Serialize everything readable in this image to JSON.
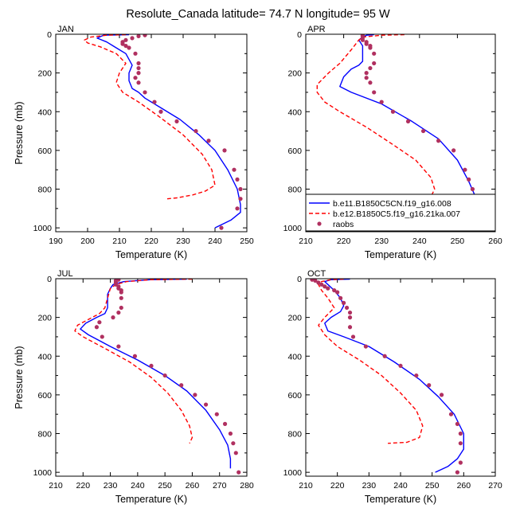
{
  "figure": {
    "title": "Resolute_Canada  latitude= 74.7 N longitude= 95 W"
  },
  "legend": {
    "entries": [
      {
        "label": "b.e11.B1850C5CN.f19_g16.008",
        "color": "#0000ff",
        "style": "solid"
      },
      {
        "label": "b.e12.B1850C5.f19_g16.21ka.007",
        "color": "#ff0000",
        "style": "dashed"
      },
      {
        "label": "raobs",
        "color": "#b03060",
        "style": "dots"
      }
    ]
  },
  "chart_data": [
    {
      "type": "line",
      "panel": "JAN",
      "title": "JAN",
      "xlabel": "Temperature (K)",
      "ylabel": "Pressure (mb)",
      "xlim": [
        190,
        250
      ],
      "ylim": [
        1020,
        0
      ],
      "xticks": [
        190,
        200,
        210,
        220,
        230,
        240,
        250
      ],
      "yticks": [
        0,
        200,
        400,
        600,
        800,
        1000
      ],
      "series": [
        {
          "name": "b.e11.B1850C5CN.f19_g16.008",
          "color": "#0000ff",
          "style": "solid",
          "x": [
            213,
            205,
            203,
            206,
            208,
            210,
            212,
            213,
            214,
            213,
            213,
            214,
            216,
            218,
            223,
            229,
            235,
            240,
            244,
            247,
            248,
            248,
            245,
            240
          ],
          "y": [
            2,
            5,
            20,
            40,
            60,
            80,
            100,
            130,
            160,
            200,
            240,
            280,
            300,
            330,
            380,
            440,
            520,
            600,
            700,
            800,
            880,
            920,
            960,
            1000
          ]
        },
        {
          "name": "b.e12.B1850C5.f19_g16.21ka.007",
          "color": "#ff0000",
          "style": "dashed",
          "x": [
            212,
            206,
            201,
            199,
            200,
            204,
            209,
            212,
            210,
            209,
            211,
            216,
            222,
            230,
            236,
            239,
            240,
            237,
            233,
            228,
            225
          ],
          "y": [
            2,
            5,
            15,
            30,
            45,
            65,
            100,
            150,
            200,
            250,
            300,
            350,
            420,
            520,
            620,
            700,
            780,
            810,
            830,
            845,
            850
          ]
        },
        {
          "name": "raobs",
          "color": "#b03060",
          "style": "dots",
          "x": [
            218,
            216,
            214,
            212,
            211,
            211,
            212,
            213,
            215,
            216,
            216,
            216,
            215,
            216,
            218,
            221,
            223,
            228,
            234,
            238,
            243,
            246,
            247,
            248,
            248,
            247,
            242
          ],
          "y": [
            5,
            10,
            20,
            30,
            40,
            50,
            60,
            70,
            100,
            150,
            175,
            200,
            225,
            250,
            300,
            350,
            400,
            450,
            500,
            550,
            600,
            700,
            750,
            800,
            850,
            900,
            1000
          ]
        }
      ]
    },
    {
      "type": "line",
      "panel": "APR",
      "title": "APR",
      "xlabel": "Temperature (K)",
      "ylabel": "",
      "xlim": [
        210,
        260
      ],
      "ylim": [
        1020,
        0
      ],
      "xticks": [
        210,
        220,
        230,
        240,
        250,
        260
      ],
      "yticks": [
        0,
        200,
        400,
        600,
        800,
        1000
      ],
      "series": [
        {
          "name": "b.e11.B1850C5CN.f19_g16.008",
          "color": "#0000ff",
          "style": "solid",
          "x": [
            228,
            226,
            225,
            224,
            225,
            225,
            225,
            224,
            222,
            220,
            219,
            222,
            230,
            238,
            245,
            250,
            253,
            255,
            255,
            253,
            250,
            246
          ],
          "y": [
            2,
            5,
            15,
            30,
            60,
            100,
            140,
            160,
            180,
            220,
            270,
            300,
            360,
            450,
            540,
            650,
            760,
            850,
            900,
            950,
            980,
            1000
          ]
        },
        {
          "name": "b.e12.B1850C5.f19_g16.21ka.007",
          "color": "#ff0000",
          "style": "dashed",
          "x": [
            236,
            230,
            225,
            224,
            222,
            219,
            216,
            213,
            213,
            215,
            219,
            226,
            233,
            239,
            243,
            244,
            243,
            241
          ],
          "y": [
            2,
            5,
            15,
            30,
            80,
            150,
            200,
            260,
            300,
            350,
            400,
            480,
            570,
            650,
            740,
            800,
            840,
            850
          ]
        },
        {
          "name": "raobs",
          "color": "#b03060",
          "style": "dots",
          "x": [
            225,
            225,
            225,
            225,
            226,
            226,
            227,
            227,
            228,
            228,
            227,
            226,
            226,
            227,
            228,
            230,
            233,
            237,
            241,
            245,
            249,
            252,
            253,
            254,
            255,
            254,
            252,
            250
          ],
          "y": [
            5,
            10,
            20,
            30,
            40,
            50,
            60,
            70,
            100,
            150,
            175,
            200,
            225,
            250,
            300,
            350,
            400,
            450,
            500,
            550,
            600,
            700,
            750,
            800,
            850,
            900,
            950,
            1000
          ]
        }
      ]
    },
    {
      "type": "line",
      "panel": "JUL",
      "title": "JUL",
      "xlabel": "Temperature (K)",
      "ylabel": "Pressure (mb)",
      "xlim": [
        210,
        280
      ],
      "ylim": [
        1020,
        0
      ],
      "xticks": [
        210,
        220,
        230,
        240,
        250,
        260,
        270,
        280
      ],
      "yticks": [
        0,
        200,
        400,
        600,
        800,
        1000
      ],
      "series": [
        {
          "name": "b.e11.B1850C5CN.f19_g16.008",
          "color": "#0000ff",
          "style": "solid",
          "x": [
            258,
            245,
            235,
            231,
            230,
            229,
            229,
            229,
            228,
            225,
            221,
            219,
            222,
            230,
            240,
            250,
            258,
            265,
            270,
            273,
            274,
            274
          ],
          "y": [
            2,
            5,
            15,
            30,
            50,
            80,
            110,
            150,
            180,
            200,
            230,
            260,
            290,
            350,
            420,
            500,
            580,
            680,
            780,
            860,
            930,
            980
          ]
        },
        {
          "name": "b.e12.B1850C5.f19_g16.21ka.007",
          "color": "#ff0000",
          "style": "dashed",
          "x": [
            260,
            245,
            236,
            232,
            230,
            229,
            228,
            226,
            222,
            218,
            217,
            220,
            228,
            237,
            245,
            251,
            256,
            259,
            260,
            259
          ],
          "y": [
            2,
            5,
            15,
            30,
            50,
            100,
            150,
            180,
            210,
            240,
            270,
            300,
            360,
            430,
            510,
            590,
            680,
            760,
            820,
            850
          ]
        },
        {
          "name": "raobs",
          "color": "#b03060",
          "style": "dots",
          "x": [
            233,
            232,
            232,
            232,
            233,
            233,
            234,
            234,
            234,
            234,
            233,
            231,
            226,
            225,
            227,
            233,
            239,
            245,
            250,
            256,
            261,
            265,
            269,
            272,
            274,
            275,
            276,
            277
          ],
          "y": [
            5,
            10,
            20,
            30,
            40,
            50,
            60,
            70,
            100,
            150,
            175,
            200,
            225,
            250,
            300,
            350,
            400,
            450,
            500,
            550,
            600,
            650,
            700,
            750,
            800,
            850,
            900,
            1000
          ]
        }
      ]
    },
    {
      "type": "line",
      "panel": "OCT",
      "title": "OCT",
      "xlabel": "Temperature (K)",
      "ylabel": "",
      "xlim": [
        210,
        270
      ],
      "ylim": [
        1020,
        0
      ],
      "xticks": [
        210,
        220,
        230,
        240,
        250,
        260,
        270
      ],
      "yticks": [
        0,
        200,
        400,
        600,
        800,
        1000
      ],
      "series": [
        {
          "name": "b.e11.B1850C5CN.f19_g16.008",
          "color": "#0000ff",
          "style": "solid",
          "x": [
            224,
            218,
            216,
            217,
            219,
            221,
            222,
            221,
            218,
            216,
            217,
            222,
            230,
            238,
            246,
            252,
            257,
            260,
            260,
            258,
            255,
            251
          ],
          "y": [
            2,
            5,
            15,
            30,
            60,
            100,
            140,
            170,
            200,
            230,
            270,
            300,
            350,
            430,
            520,
            610,
            700,
            800,
            880,
            930,
            970,
            1000
          ]
        },
        {
          "name": "b.e12.B1850C5.f19_g16.21ka.007",
          "color": "#ff0000",
          "style": "dashed",
          "x": [
            222,
            218,
            215,
            214,
            215,
            217,
            219,
            216,
            214,
            216,
            220,
            227,
            234,
            240,
            245,
            247,
            246,
            242,
            236
          ],
          "y": [
            2,
            5,
            15,
            30,
            60,
            100,
            150,
            200,
            240,
            290,
            350,
            420,
            500,
            590,
            680,
            760,
            820,
            845,
            850
          ]
        },
        {
          "name": "raobs",
          "color": "#b03060",
          "style": "dots",
          "x": [
            212,
            213,
            214,
            215,
            216,
            217,
            219,
            220,
            221,
            222,
            223,
            224,
            224,
            224,
            225,
            229,
            235,
            240,
            245,
            249,
            253,
            256,
            258,
            259,
            259,
            259,
            258
          ],
          "y": [
            5,
            10,
            20,
            30,
            40,
            50,
            60,
            70,
            100,
            125,
            150,
            175,
            200,
            250,
            300,
            350,
            400,
            450,
            500,
            550,
            600,
            700,
            750,
            800,
            850,
            950,
            1000
          ]
        }
      ]
    }
  ]
}
